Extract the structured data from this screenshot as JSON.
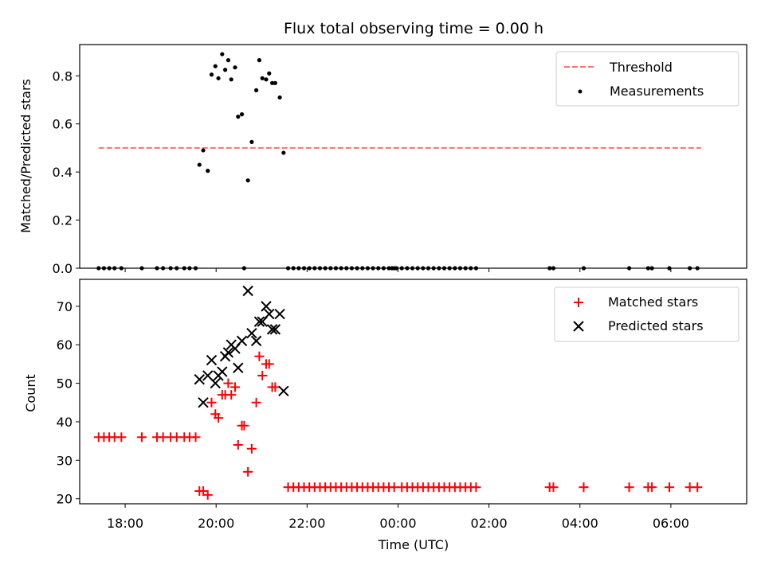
{
  "chart_data": [
    {
      "type": "scatter",
      "title": "Flux total observing time = 0.00 h",
      "xlabel": "",
      "ylabel": "Matched/Predicted stars",
      "ylim": [
        0,
        0.93
      ],
      "xlim": [
        "17:00",
        "07:40"
      ],
      "y_ticks": [
        "0.0",
        "0.2",
        "0.4",
        "0.6",
        "0.8"
      ],
      "grid": false,
      "legend_position": "top-right",
      "threshold": {
        "name": "Threshold",
        "value": 0.5,
        "x_start": "17:25",
        "x_end": "06:40",
        "color": "#ff7070",
        "style": "dashed"
      },
      "series": [
        {
          "name": "Measurements",
          "color": "#000000",
          "marker": "dot",
          "points": [
            [
              "17:25",
              0
            ],
            [
              "17:32",
              0
            ],
            [
              "17:39",
              0
            ],
            [
              "17:46",
              0
            ],
            [
              "17:55",
              0
            ],
            [
              "18:22",
              0
            ],
            [
              "18:42",
              0
            ],
            [
              "18:50",
              0
            ],
            [
              "19:00",
              0
            ],
            [
              "19:08",
              0
            ],
            [
              "19:18",
              0
            ],
            [
              "19:25",
              0
            ],
            [
              "19:33",
              0
            ],
            [
              "19:38",
              0.43
            ],
            [
              "19:43",
              0.49
            ],
            [
              "19:49",
              0.405
            ],
            [
              "19:54",
              0.805
            ],
            [
              "19:59",
              0.84
            ],
            [
              "20:03",
              0.79
            ],
            [
              "20:08",
              0.89
            ],
            [
              "20:12",
              0.825
            ],
            [
              "20:16",
              0.865
            ],
            [
              "20:20",
              0.785
            ],
            [
              "20:25",
              0.835
            ],
            [
              "20:29",
              0.63
            ],
            [
              "20:34",
              0.64
            ],
            [
              "20:37",
              0
            ],
            [
              "20:42",
              0.365
            ],
            [
              "20:47",
              0.525
            ],
            [
              "20:53",
              0.74
            ],
            [
              "20:57",
              0.865
            ],
            [
              "21:01",
              0.79
            ],
            [
              "21:06",
              0.785
            ],
            [
              "21:10",
              0.81
            ],
            [
              "21:14",
              0.77
            ],
            [
              "21:18",
              0.77
            ],
            [
              "21:24",
              0.71
            ],
            [
              "21:29",
              0.48
            ],
            [
              "21:35",
              0
            ],
            [
              "21:42",
              0
            ],
            [
              "21:49",
              0
            ],
            [
              "21:56",
              0
            ],
            [
              "22:03",
              0
            ],
            [
              "22:10",
              0
            ],
            [
              "22:17",
              0
            ],
            [
              "22:24",
              0
            ],
            [
              "22:31",
              0
            ],
            [
              "22:38",
              0
            ],
            [
              "22:45",
              0
            ],
            [
              "22:52",
              0
            ],
            [
              "22:59",
              0
            ],
            [
              "23:06",
              0
            ],
            [
              "23:13",
              0
            ],
            [
              "23:20",
              0
            ],
            [
              "23:27",
              0
            ],
            [
              "23:34",
              0
            ],
            [
              "23:41",
              0
            ],
            [
              "23:48",
              0
            ],
            [
              "23:55",
              0
            ],
            [
              "23:52",
              0
            ],
            [
              "23:58",
              0
            ],
            [
              "00:05",
              0
            ],
            [
              "00:12",
              0
            ],
            [
              "00:19",
              0
            ],
            [
              "00:26",
              0
            ],
            [
              "00:33",
              0
            ],
            [
              "00:40",
              0
            ],
            [
              "00:47",
              0
            ],
            [
              "00:54",
              0
            ],
            [
              "01:01",
              0
            ],
            [
              "01:08",
              0
            ],
            [
              "01:15",
              0
            ],
            [
              "01:22",
              0
            ],
            [
              "01:29",
              0
            ],
            [
              "01:36",
              0
            ],
            [
              "01:43",
              0
            ],
            [
              "03:20",
              0
            ],
            [
              "03:25",
              0
            ],
            [
              "04:05",
              0
            ],
            [
              "05:05",
              0
            ],
            [
              "05:30",
              0
            ],
            [
              "05:35",
              0
            ],
            [
              "05:58",
              0
            ],
            [
              "06:25",
              0
            ],
            [
              "06:35",
              0
            ]
          ]
        }
      ]
    },
    {
      "type": "scatter",
      "title": "",
      "xlabel": "Time (UTC)",
      "ylabel": "Count",
      "ylim": [
        18.7,
        77
      ],
      "xlim": [
        "17:00",
        "07:40"
      ],
      "x_ticks": [
        "18:00",
        "20:00",
        "22:00",
        "00:00",
        "02:00",
        "04:00",
        "06:00"
      ],
      "y_ticks": [
        "20",
        "30",
        "40",
        "50",
        "60",
        "70"
      ],
      "grid": false,
      "legend_position": "top-right",
      "series": [
        {
          "name": "Matched stars",
          "color": "#ff0000",
          "marker": "plus",
          "points": [
            [
              "17:25",
              36
            ],
            [
              "17:32",
              36
            ],
            [
              "17:39",
              36
            ],
            [
              "17:46",
              36
            ],
            [
              "17:55",
              36
            ],
            [
              "18:22",
              36
            ],
            [
              "18:42",
              36
            ],
            [
              "18:50",
              36
            ],
            [
              "19:00",
              36
            ],
            [
              "19:08",
              36
            ],
            [
              "19:18",
              36
            ],
            [
              "19:25",
              36
            ],
            [
              "19:33",
              36
            ],
            [
              "19:38",
              22
            ],
            [
              "19:43",
              22
            ],
            [
              "19:49",
              21
            ],
            [
              "19:54",
              45
            ],
            [
              "19:59",
              42
            ],
            [
              "20:03",
              41
            ],
            [
              "20:08",
              47
            ],
            [
              "20:12",
              47
            ],
            [
              "20:16",
              50
            ],
            [
              "20:20",
              47
            ],
            [
              "20:25",
              49
            ],
            [
              "20:29",
              34
            ],
            [
              "20:34",
              39
            ],
            [
              "20:37",
              39
            ],
            [
              "20:42",
              27
            ],
            [
              "20:47",
              33
            ],
            [
              "20:53",
              45
            ],
            [
              "20:57",
              57
            ],
            [
              "21:01",
              52
            ],
            [
              "21:06",
              55
            ],
            [
              "21:10",
              55
            ],
            [
              "21:14",
              49
            ],
            [
              "21:18",
              49
            ],
            [
              "21:35",
              23
            ],
            [
              "21:42",
              23
            ],
            [
              "21:49",
              23
            ],
            [
              "21:56",
              23
            ],
            [
              "22:03",
              23
            ],
            [
              "22:10",
              23
            ],
            [
              "22:17",
              23
            ],
            [
              "22:24",
              23
            ],
            [
              "22:31",
              23
            ],
            [
              "22:38",
              23
            ],
            [
              "22:45",
              23
            ],
            [
              "22:52",
              23
            ],
            [
              "22:59",
              23
            ],
            [
              "23:06",
              23
            ],
            [
              "23:13",
              23
            ],
            [
              "23:20",
              23
            ],
            [
              "23:27",
              23
            ],
            [
              "23:34",
              23
            ],
            [
              "23:41",
              23
            ],
            [
              "23:48",
              23
            ],
            [
              "23:55",
              23
            ],
            [
              "00:05",
              23
            ],
            [
              "00:12",
              23
            ],
            [
              "00:19",
              23
            ],
            [
              "00:26",
              23
            ],
            [
              "00:33",
              23
            ],
            [
              "00:40",
              23
            ],
            [
              "00:47",
              23
            ],
            [
              "00:54",
              23
            ],
            [
              "01:01",
              23
            ],
            [
              "01:08",
              23
            ],
            [
              "01:15",
              23
            ],
            [
              "01:22",
              23
            ],
            [
              "01:29",
              23
            ],
            [
              "01:36",
              23
            ],
            [
              "01:43",
              23
            ],
            [
              "03:20",
              23
            ],
            [
              "03:25",
              23
            ],
            [
              "04:05",
              23
            ],
            [
              "05:05",
              23
            ],
            [
              "05:30",
              23
            ],
            [
              "05:35",
              23
            ],
            [
              "05:58",
              23
            ],
            [
              "06:25",
              23
            ],
            [
              "06:35",
              23
            ]
          ]
        },
        {
          "name": "Predicted stars",
          "color": "#000000",
          "marker": "x",
          "points": [
            [
              "19:38",
              51
            ],
            [
              "19:43",
              45
            ],
            [
              "19:49",
              52
            ],
            [
              "19:54",
              56
            ],
            [
              "19:59",
              50
            ],
            [
              "20:03",
              52
            ],
            [
              "20:08",
              53
            ],
            [
              "20:12",
              57
            ],
            [
              "20:16",
              58
            ],
            [
              "20:20",
              60
            ],
            [
              "20:25",
              59
            ],
            [
              "20:29",
              54
            ],
            [
              "20:34",
              61
            ],
            [
              "20:42",
              74
            ],
            [
              "20:47",
              63
            ],
            [
              "20:53",
              61
            ],
            [
              "20:57",
              66
            ],
            [
              "21:01",
              66
            ],
            [
              "21:06",
              70
            ],
            [
              "21:10",
              68
            ],
            [
              "21:14",
              64
            ],
            [
              "21:18",
              64
            ],
            [
              "21:24",
              68
            ],
            [
              "21:29",
              48
            ]
          ]
        }
      ]
    }
  ]
}
